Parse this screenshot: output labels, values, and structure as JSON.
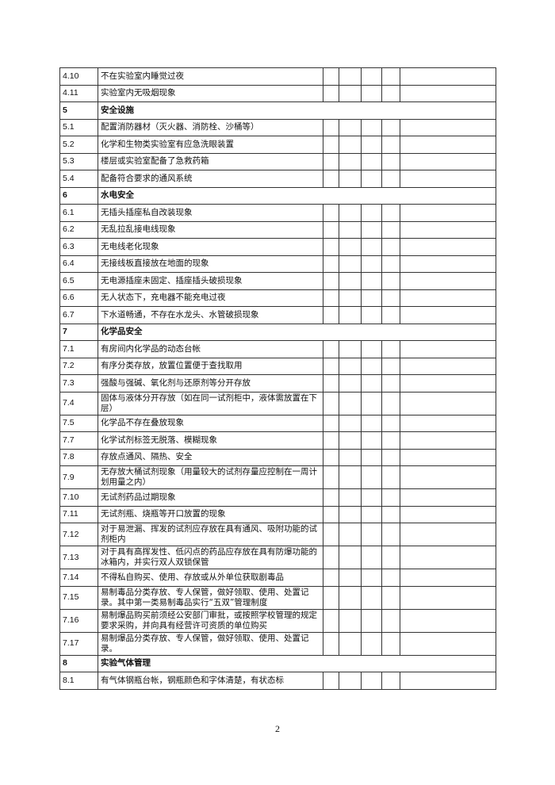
{
  "rows": [
    {
      "no": "4.10",
      "text": "不在实验室内睡觉过夜"
    },
    {
      "no": "4.11",
      "text": "实验室内无吸烟现象"
    },
    {
      "no": "5",
      "text": "安全设施",
      "section": true
    },
    {
      "no": "5.1",
      "text": "配置消防器材（灭火器、消防栓、沙桶等）"
    },
    {
      "no": "5.2",
      "text": "化学和生物类实验室有应急洗眼装置"
    },
    {
      "no": "5.3",
      "text": "楼层或实验室配备了急救药箱"
    },
    {
      "no": "5.4",
      "text": "配备符合要求的通风系统"
    },
    {
      "no": "6",
      "text": "水电安全",
      "section": true
    },
    {
      "no": "6.1",
      "text": "无插头插座私自改装现象"
    },
    {
      "no": "6.2",
      "text": "无乱拉乱接电线现象"
    },
    {
      "no": "6.3",
      "text": "无电线老化现象"
    },
    {
      "no": "6.4",
      "text": "无接线板直接放在地面的现象"
    },
    {
      "no": "6.5",
      "text": "无电源插座未固定、插座插头破损现象"
    },
    {
      "no": "6.6",
      "text": "无人状态下，充电器不能充电过夜"
    },
    {
      "no": "6.7",
      "text": "下水道畅通，不存在水龙头、水管破损现象"
    },
    {
      "no": "7",
      "text": "化学品安全",
      "section": true
    },
    {
      "no": "7.1",
      "text": "有房间内化学品的动态台帐"
    },
    {
      "no": "7.2",
      "text": "有序分类存放，放置位置便于查找取用"
    },
    {
      "no": "7.3",
      "text": "强酸与强碱、氧化剂与还原剂等分开存放"
    },
    {
      "no": "7.4",
      "text": "固体与液体分开存放（如在同一试剂柜中，液体需放置在下层）"
    },
    {
      "no": "7.5",
      "text": "化学品不存在叠放现象"
    },
    {
      "no": "7.7",
      "text": "化学试剂标签无脱落、模糊现象"
    },
    {
      "no": "7.8",
      "text": "存放点通风、隔热、安全"
    },
    {
      "no": "7.9",
      "text": "无存放大桶试剂现象（用量较大的试剂存量应控制在一周计划用量之内）"
    },
    {
      "no": "7.10",
      "text": "无试剂药品过期现象"
    },
    {
      "no": "7.11",
      "text": "无试剂瓶、烧瓶等开口放置的现象"
    },
    {
      "no": "7.12",
      "text": "对于易泄漏、挥发的试剂应存放在具有通风、吸附功能的试剂柜内"
    },
    {
      "no": "7.13",
      "text": "对于具有高挥发性、低闪点的药品应存放在具有防爆功能的冰箱内，并实行双人双锁保管"
    },
    {
      "no": "7.14",
      "text": "不得私自购买、使用、存放或从外单位获取剧毒品"
    },
    {
      "no": "7.15",
      "text": "易制毒品分类存放、专人保管，做好领取、使用、处置记录。其中第一类易制毒品实行“五双”管理制度"
    },
    {
      "no": "7.16",
      "text": "易制爆品购买前须经公安部门审批，或按照学校管理的规定要求采购，并向具有经营许可资质的单位购买"
    },
    {
      "no": "7.17",
      "text": "易制爆品分类存放、专人保管，做好领取、使用、处置记录。"
    },
    {
      "no": "8",
      "text": "实验气体管理",
      "section": true
    },
    {
      "no": "8.1",
      "text": "有气体钢瓶台帐，钢瓶颜色和字体清楚，有状态标"
    }
  ],
  "page_number": "2"
}
